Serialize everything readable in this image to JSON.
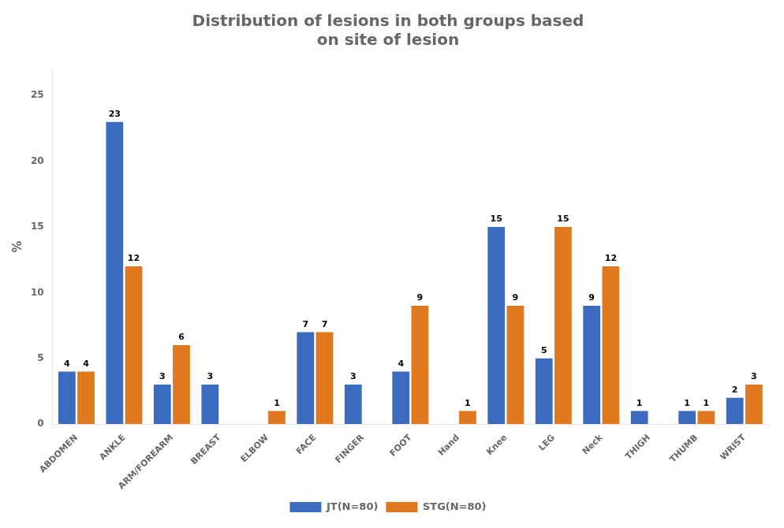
{
  "chart_data": {
    "type": "bar",
    "title": "Distribution of lesions in both groups based\non site of lesion",
    "ylabel": "%",
    "categories": [
      "ABDOMEN",
      "ANKLE",
      "ARM/FOREARM",
      "BREAST",
      "ELBOW",
      "FACE",
      "FINGER",
      "FOOT",
      "Hand",
      "Knee",
      "LEG",
      "Neck",
      "THIGH",
      "THUMB",
      "WRIST"
    ],
    "series": [
      {
        "name": "JT(N=80)",
        "color": "#3a6bbf",
        "values": [
          4,
          23,
          3,
          3,
          0,
          7,
          3,
          4,
          0,
          15,
          5,
          9,
          1,
          1,
          2
        ],
        "value_labels": [
          "4",
          "23",
          "3",
          "3",
          null,
          "7",
          "3",
          "4",
          null,
          "15",
          "5",
          "9",
          "1",
          "1",
          "2"
        ]
      },
      {
        "name": "STG(N=80)",
        "color": "#e07820",
        "values": [
          4,
          12,
          6,
          0,
          1,
          7,
          0,
          9,
          1,
          9,
          15,
          12,
          0,
          1,
          3
        ],
        "value_labels": [
          "4",
          "12",
          "6",
          null,
          "1",
          "7",
          null,
          "9",
          "1",
          "9",
          "15",
          "12",
          null,
          "1",
          "3"
        ]
      }
    ],
    "ylim": [
      0,
      27
    ],
    "yticks": [
      0,
      5,
      10,
      15,
      20,
      25
    ],
    "grid": false,
    "legend": "bottom",
    "data_labels": true
  }
}
